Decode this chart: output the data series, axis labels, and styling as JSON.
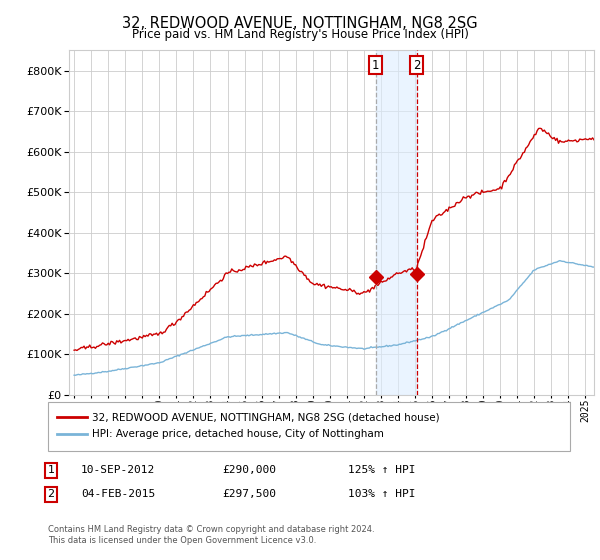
{
  "title": "32, REDWOOD AVENUE, NOTTINGHAM, NG8 2SG",
  "subtitle": "Price paid vs. HM Land Registry's House Price Index (HPI)",
  "legend_line1": "32, REDWOOD AVENUE, NOTTINGHAM, NG8 2SG (detached house)",
  "legend_line2": "HPI: Average price, detached house, City of Nottingham",
  "transaction1_date": "10-SEP-2012",
  "transaction1_price": "£290,000",
  "transaction1_hpi": "125% ↑ HPI",
  "transaction1_year": 2012.69,
  "transaction1_value": 290000,
  "transaction2_date": "04-FEB-2015",
  "transaction2_price": "£297,500",
  "transaction2_hpi": "103% ↑ HPI",
  "transaction2_year": 2015.09,
  "transaction2_value": 297500,
  "hpi_color": "#7ab4d8",
  "price_color": "#cc0000",
  "marker_color": "#cc0000",
  "vline1_color": "#aaaaaa",
  "vline2_color": "#cc0000",
  "shade_color": "#ddeeff",
  "ylim": [
    0,
    850000
  ],
  "yticks": [
    0,
    100000,
    200000,
    300000,
    400000,
    500000,
    600000,
    700000,
    800000
  ],
  "footnote": "Contains HM Land Registry data © Crown copyright and database right 2024.\nThis data is licensed under the Open Government Licence v3.0.",
  "background_color": "#ffffff",
  "grid_color": "#cccccc"
}
